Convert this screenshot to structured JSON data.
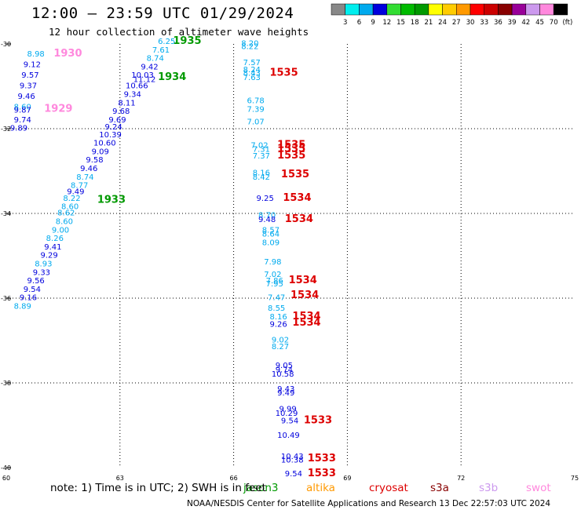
{
  "title": "12:00 — 23:59 UTC 01/29/2024",
  "subtitle": "12 hour collection of altimeter wave heights",
  "legend": {
    "colors": [
      "#888888",
      "#00eeee",
      "#00aaee",
      "#0000dd",
      "#33dd33",
      "#00bb00",
      "#009900",
      "#ffff00",
      "#ffcc00",
      "#ff9900",
      "#ff0000",
      "#cc0000",
      "#880000",
      "#990099",
      "#cc99ee",
      "#ff88dd",
      "#000000"
    ],
    "labels": [
      "3",
      "6",
      "9",
      "12",
      "15",
      "18",
      "21",
      "24",
      "27",
      "30",
      "33",
      "36",
      "39",
      "42",
      "45",
      "70",
      "(ft)"
    ]
  },
  "axes": {
    "lat_ticks": [
      {
        "value": -30,
        "label": "-30"
      },
      {
        "value": -32,
        "label": "-32"
      },
      {
        "value": -34,
        "label": "-34"
      },
      {
        "value": -36,
        "label": "-36"
      },
      {
        "value": -38,
        "label": "-38"
      },
      {
        "value": -40,
        "label": "-40"
      }
    ],
    "lon_ticks": [
      {
        "value": 60,
        "label": "60"
      },
      {
        "value": 63,
        "label": "63"
      },
      {
        "value": 66,
        "label": "66"
      },
      {
        "value": 69,
        "label": "69"
      },
      {
        "value": 72,
        "label": "72"
      },
      {
        "value": 75,
        "label": "75"
      }
    ]
  },
  "observations": [
    {
      "text": "6.25",
      "lon": 64.0,
      "lat": -30.0,
      "color": "#00aaee"
    },
    {
      "text": "7.61",
      "lon": 63.85,
      "lat": -30.2,
      "color": "#00aaee"
    },
    {
      "text": "8.74",
      "lon": 63.7,
      "lat": -30.4,
      "color": "#00aaee"
    },
    {
      "text": "9.42",
      "lon": 63.55,
      "lat": -30.6,
      "color": "#0000dd"
    },
    {
      "text": "10.03",
      "lon": 63.3,
      "lat": -30.8,
      "color": "#0000dd"
    },
    {
      "text": "11.12",
      "lon": 63.35,
      "lat": -30.9,
      "color": "#0000dd"
    },
    {
      "text": "10.66",
      "lon": 63.15,
      "lat": -31.05,
      "color": "#0000dd"
    },
    {
      "text": "9.34",
      "lon": 63.1,
      "lat": -31.25,
      "color": "#0000dd"
    },
    {
      "text": "8.11",
      "lon": 62.95,
      "lat": -31.45,
      "color": "#0000dd"
    },
    {
      "text": "9.68",
      "lon": 62.8,
      "lat": -31.65,
      "color": "#0000dd"
    },
    {
      "text": "9.69",
      "lon": 62.7,
      "lat": -31.85,
      "color": "#0000dd"
    },
    {
      "text": "9.24",
      "lon": 62.6,
      "lat": -32.02,
      "color": "#0000dd"
    },
    {
      "text": "10.39",
      "lon": 62.45,
      "lat": -32.2,
      "color": "#0000dd"
    },
    {
      "text": "10.60",
      "lon": 62.3,
      "lat": -32.4,
      "color": "#0000dd"
    },
    {
      "text": "9.09",
      "lon": 62.25,
      "lat": -32.6,
      "color": "#0000dd"
    },
    {
      "text": "9.58",
      "lon": 62.1,
      "lat": -32.8,
      "color": "#0000dd"
    },
    {
      "text": "9.46",
      "lon": 61.95,
      "lat": -33.0,
      "color": "#0000dd"
    },
    {
      "text": "8.74",
      "lon": 61.85,
      "lat": -33.2,
      "color": "#00aaee"
    },
    {
      "text": "8.77",
      "lon": 61.7,
      "lat": -33.4,
      "color": "#00aaee"
    },
    {
      "text": "9.49",
      "lon": 61.6,
      "lat": -33.55,
      "color": "#0000dd"
    },
    {
      "text": "8.22",
      "lon": 61.5,
      "lat": -33.7,
      "color": "#00aaee"
    },
    {
      "text": "8.60",
      "lon": 61.45,
      "lat": -33.9,
      "color": "#00aaee"
    },
    {
      "text": "8.62",
      "lon": 61.35,
      "lat": -34.05,
      "color": "#00aaee"
    },
    {
      "text": "8.60",
      "lon": 61.3,
      "lat": -34.25,
      "color": "#00aaee"
    },
    {
      "text": "9.00",
      "lon": 61.2,
      "lat": -34.45,
      "color": "#00aaee"
    },
    {
      "text": "8.26",
      "lon": 61.05,
      "lat": -34.65,
      "color": "#00aaee"
    },
    {
      "text": "9.41",
      "lon": 61.0,
      "lat": -34.85,
      "color": "#0000dd"
    },
    {
      "text": "9.29",
      "lon": 60.9,
      "lat": -35.05,
      "color": "#0000dd"
    },
    {
      "text": "8.93",
      "lon": 60.75,
      "lat": -35.25,
      "color": "#00aaee"
    },
    {
      "text": "9.33",
      "lon": 60.7,
      "lat": -35.45,
      "color": "#0000dd"
    },
    {
      "text": "9.56",
      "lon": 60.55,
      "lat": -35.65,
      "color": "#0000dd"
    },
    {
      "text": "9.54",
      "lon": 60.45,
      "lat": -35.85,
      "color": "#0000dd"
    },
    {
      "text": "9.16",
      "lon": 60.35,
      "lat": -36.05,
      "color": "#0000dd"
    },
    {
      "text": "8.89",
      "lon": 60.2,
      "lat": -36.25,
      "color": "#00aaee"
    },
    {
      "text": "8.98",
      "lon": 60.55,
      "lat": -30.3,
      "color": "#00aaee"
    },
    {
      "text": "9.12",
      "lon": 60.45,
      "lat": -30.55,
      "color": "#0000dd"
    },
    {
      "text": "9.57",
      "lon": 60.4,
      "lat": -30.8,
      "color": "#0000dd"
    },
    {
      "text": "9.37",
      "lon": 60.35,
      "lat": -31.05,
      "color": "#0000dd"
    },
    {
      "text": "9.46",
      "lon": 60.3,
      "lat": -31.3,
      "color": "#0000dd"
    },
    {
      "text": "8.60",
      "lon": 60.2,
      "lat": -31.55,
      "color": "#00aaee"
    },
    {
      "text": "9.87",
      "lon": 60.2,
      "lat": -31.62,
      "color": "#0000dd"
    },
    {
      "text": "9.74",
      "lon": 60.2,
      "lat": -31.85,
      "color": "#0000dd"
    },
    {
      "text": "9.89",
      "lon": 60.1,
      "lat": -32.05,
      "color": "#0000dd"
    },
    {
      "text": "8.20",
      "lon": 66.2,
      "lat": -30.05,
      "color": "#00aaee"
    },
    {
      "text": "8.22",
      "lon": 66.2,
      "lat": -30.12,
      "color": "#00aaee"
    },
    {
      "text": "7.57",
      "lon": 66.25,
      "lat": -30.5,
      "color": "#00aaee"
    },
    {
      "text": "8.24",
      "lon": 66.25,
      "lat": -30.67,
      "color": "#00aaee"
    },
    {
      "text": "8.43",
      "lon": 66.25,
      "lat": -30.75,
      "color": "#00aaee"
    },
    {
      "text": "7.63",
      "lon": 66.25,
      "lat": -30.85,
      "color": "#00aaee"
    },
    {
      "text": "6.78",
      "lon": 66.35,
      "lat": -31.4,
      "color": "#00aaee"
    },
    {
      "text": "7.39",
      "lon": 66.35,
      "lat": -31.6,
      "color": "#00aaee"
    },
    {
      "text": "7.07",
      "lon": 66.35,
      "lat": -31.9,
      "color": "#00aaee"
    },
    {
      "text": "7.02",
      "lon": 66.45,
      "lat": -32.45,
      "color": "#00aaee"
    },
    {
      "text": "7.31",
      "lon": 66.5,
      "lat": -32.55,
      "color": "#00aaee"
    },
    {
      "text": "7.37",
      "lon": 66.5,
      "lat": -32.7,
      "color": "#00aaee"
    },
    {
      "text": "8.16",
      "lon": 66.5,
      "lat": -33.1,
      "color": "#00aaee"
    },
    {
      "text": "8.42",
      "lon": 66.5,
      "lat": -33.2,
      "color": "#00aaee"
    },
    {
      "text": "9.25",
      "lon": 66.6,
      "lat": -33.7,
      "color": "#0000dd"
    },
    {
      "text": "8.70",
      "lon": 66.65,
      "lat": -34.1,
      "color": "#00aaee"
    },
    {
      "text": "9.48",
      "lon": 66.65,
      "lat": -34.2,
      "color": "#0000dd"
    },
    {
      "text": "8.57",
      "lon": 66.75,
      "lat": -34.45,
      "color": "#00aaee"
    },
    {
      "text": "8.64",
      "lon": 66.75,
      "lat": -34.55,
      "color": "#00aaee"
    },
    {
      "text": "8.09",
      "lon": 66.75,
      "lat": -34.75,
      "color": "#00aaee"
    },
    {
      "text": "7.98",
      "lon": 66.8,
      "lat": -35.2,
      "color": "#00aaee"
    },
    {
      "text": "7.02",
      "lon": 66.8,
      "lat": -35.5,
      "color": "#00aaee"
    },
    {
      "text": "7.86",
      "lon": 66.85,
      "lat": -35.65,
      "color": "#00aaee"
    },
    {
      "text": "7.95",
      "lon": 66.85,
      "lat": -35.72,
      "color": "#00aaee"
    },
    {
      "text": "7.47",
      "lon": 66.9,
      "lat": -36.05,
      "color": "#00aaee"
    },
    {
      "text": "8.55",
      "lon": 66.9,
      "lat": -36.3,
      "color": "#00aaee"
    },
    {
      "text": "8.16",
      "lon": 66.95,
      "lat": -36.5,
      "color": "#00aaee"
    },
    {
      "text": "9.26",
      "lon": 66.95,
      "lat": -36.68,
      "color": "#0000dd"
    },
    {
      "text": "9.02",
      "lon": 67.0,
      "lat": -37.05,
      "color": "#00aaee"
    },
    {
      "text": "8.27",
      "lon": 67.0,
      "lat": -37.2,
      "color": "#00aaee"
    },
    {
      "text": "9.05",
      "lon": 67.1,
      "lat": -37.65,
      "color": "#0000dd"
    },
    {
      "text": "9.74",
      "lon": 67.1,
      "lat": -37.75,
      "color": "#0000dd"
    },
    {
      "text": "10.58",
      "lon": 67.0,
      "lat": -37.85,
      "color": "#0000dd"
    },
    {
      "text": "9.43",
      "lon": 67.15,
      "lat": -38.2,
      "color": "#0000dd"
    },
    {
      "text": "9.49",
      "lon": 67.15,
      "lat": -38.3,
      "color": "#0000dd"
    },
    {
      "text": "9.99",
      "lon": 67.2,
      "lat": -38.68,
      "color": "#0000dd"
    },
    {
      "text": "10.29",
      "lon": 67.1,
      "lat": -38.78,
      "color": "#0000dd"
    },
    {
      "text": "9.54",
      "lon": 67.25,
      "lat": -38.95,
      "color": "#0000dd"
    },
    {
      "text": "10.49",
      "lon": 67.15,
      "lat": -39.3,
      "color": "#0000dd"
    },
    {
      "text": "10.43",
      "lon": 67.25,
      "lat": -39.8,
      "color": "#0000dd"
    },
    {
      "text": "10.38",
      "lon": 67.25,
      "lat": -39.88,
      "color": "#0000dd"
    },
    {
      "text": "9.54",
      "lon": 67.35,
      "lat": -40.2,
      "color": "#0000dd"
    }
  ],
  "pass_times": [
    {
      "text": "1935",
      "lon": 64.4,
      "lat": -30.0,
      "color": "#009900"
    },
    {
      "text": "1934",
      "lon": 64.0,
      "lat": -30.85,
      "color": "#009900"
    },
    {
      "text": "1933",
      "lon": 62.4,
      "lat": -33.75,
      "color": "#009900"
    },
    {
      "text": "1930",
      "lon": 61.25,
      "lat": -30.3,
      "color": "#ff88dd"
    },
    {
      "text": "1929",
      "lon": 61.0,
      "lat": -31.6,
      "color": "#ff88dd"
    },
    {
      "text": "1535",
      "lon": 66.95,
      "lat": -30.75,
      "color": "#dd0000"
    },
    {
      "text": "1535",
      "lon": 67.15,
      "lat": -32.45,
      "color": "#dd0000"
    },
    {
      "text": "1535",
      "lon": 67.15,
      "lat": -32.55,
      "color": "#dd0000"
    },
    {
      "text": "1535",
      "lon": 67.15,
      "lat": -32.7,
      "color": "#dd0000"
    },
    {
      "text": "1535",
      "lon": 67.25,
      "lat": -33.15,
      "color": "#dd0000"
    },
    {
      "text": "1534",
      "lon": 67.3,
      "lat": -33.7,
      "color": "#dd0000"
    },
    {
      "text": "1534",
      "lon": 67.35,
      "lat": -34.2,
      "color": "#dd0000"
    },
    {
      "text": "1534",
      "lon": 67.45,
      "lat": -35.65,
      "color": "#dd0000"
    },
    {
      "text": "1534",
      "lon": 67.5,
      "lat": -36.0,
      "color": "#dd0000"
    },
    {
      "text": "1534",
      "lon": 67.55,
      "lat": -36.5,
      "color": "#dd0000"
    },
    {
      "text": "1534",
      "lon": 67.55,
      "lat": -36.65,
      "color": "#dd0000"
    },
    {
      "text": "1533",
      "lon": 67.85,
      "lat": -38.95,
      "color": "#dd0000"
    },
    {
      "text": "1533",
      "lon": 67.95,
      "lat": -39.85,
      "color": "#dd0000"
    },
    {
      "text": "1533",
      "lon": 67.95,
      "lat": -40.2,
      "color": "#dd0000"
    }
  ],
  "note": "note:  1) Time is in UTC; 2) SWH is in feet",
  "satellites": [
    {
      "name": "jason3",
      "color": "#009900"
    },
    {
      "name": "altika",
      "color": "#ff9900"
    },
    {
      "name": "cryosat",
      "color": "#dd0000"
    },
    {
      "name": "s3a",
      "color": "#880000"
    },
    {
      "name": "s3b",
      "color": "#cc99ee"
    },
    {
      "name": "swot",
      "color": "#ff88dd"
    }
  ],
  "credit": "NOAA/NESDIS Center for Satellite Applications and Research    13 Dec 22:57:03 UTC 2024"
}
